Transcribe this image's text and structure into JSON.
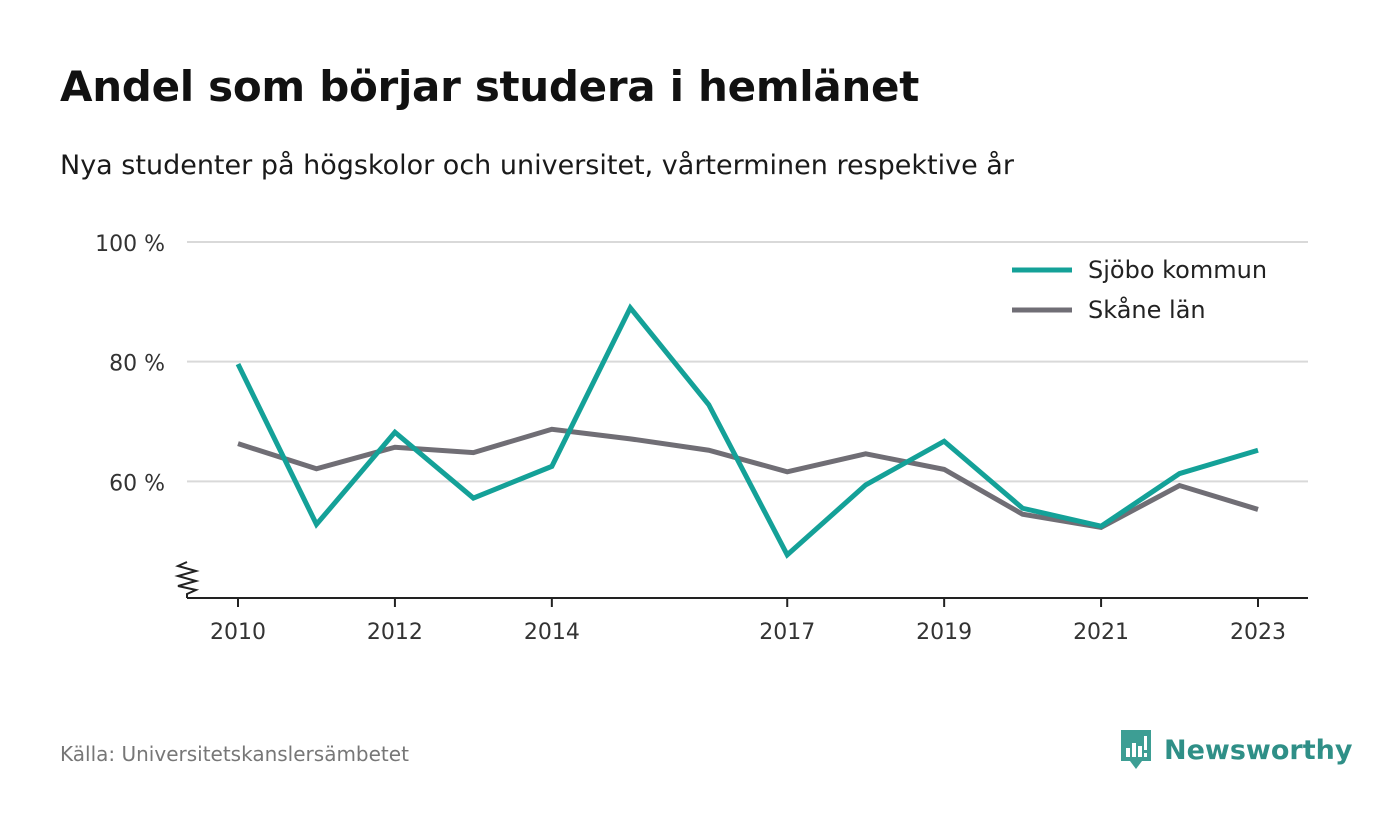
{
  "chart_data": {
    "type": "line",
    "title": "Andel som börjar studera i hemlänet",
    "subtitle": "Nya studenter på högskolor och universitet, vårterminen respektive år",
    "x": [
      2010,
      2011,
      2012,
      2013,
      2014,
      2015,
      2016,
      2017,
      2018,
      2019,
      2020,
      2021,
      2022,
      2023
    ],
    "x_tick_values": [
      2010,
      2012,
      2014,
      2017,
      2019,
      2021,
      2023
    ],
    "x_tick_labels": [
      "2010",
      "2012",
      "2014",
      "2017",
      "2019",
      "2021",
      "2023"
    ],
    "y_tick_values": [
      60,
      80,
      100
    ],
    "y_tick_labels": [
      "60 %",
      "80 %",
      "100 %"
    ],
    "ylim": [
      40.5,
      100
    ],
    "axis_break": true,
    "grid": true,
    "legend_position": "top-right",
    "series": [
      {
        "name": "Sjöbo kommun",
        "color": "#14a198",
        "values": [
          79.6,
          52.8,
          68.2,
          57.2,
          62.5,
          89.0,
          72.8,
          47.7,
          59.4,
          66.7,
          55.5,
          52.5,
          61.3,
          65.2
        ]
      },
      {
        "name": "Skåne län",
        "color": "#706e75",
        "values": [
          66.3,
          62.1,
          65.7,
          64.8,
          68.7,
          67.1,
          65.2,
          61.6,
          64.6,
          62.0,
          54.5,
          52.3,
          59.3,
          55.3
        ]
      }
    ]
  },
  "footer": {
    "source": "Källa: Universitetskanslersämbetet",
    "brand": "Newsworthy",
    "brand_color": "#3d9e94"
  }
}
